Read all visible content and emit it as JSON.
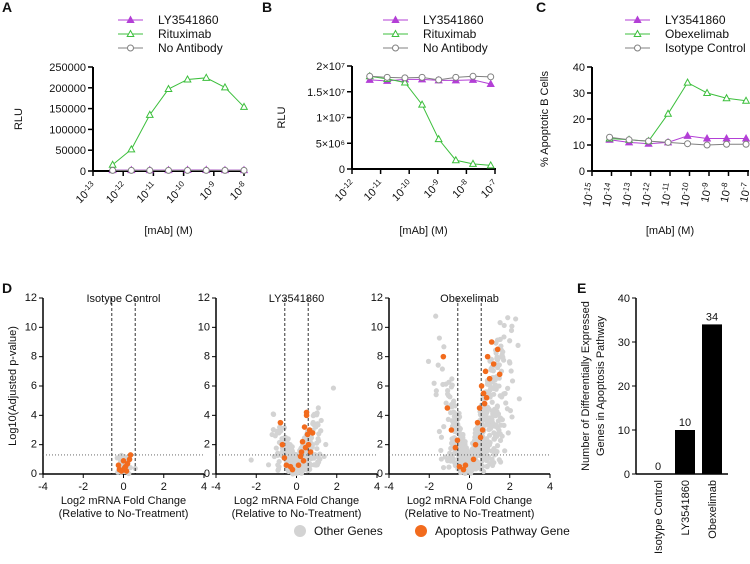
{
  "panels": {
    "A": "A",
    "B": "B",
    "C": "C",
    "D": "D",
    "E": "E"
  },
  "colors": {
    "ly": "#b33fd6",
    "green": "#3cbf3c",
    "grey": "#808080",
    "orange": "#f26b1d",
    "lightgrey": "#d3d3d3",
    "bar": "#000000"
  },
  "chart_data": [
    {
      "id": "A",
      "type": "line",
      "ylabel": "RLU",
      "xlabel": "[mAb]  (M)",
      "xscale": "log10",
      "xlim": [
        -13,
        -8
      ],
      "ylim": [
        0,
        250000
      ],
      "yticks": [
        0,
        50000,
        100000,
        150000,
        200000,
        250000
      ],
      "ytick_labels": [
        "0",
        "50000",
        "100000",
        "150000",
        "200000",
        "250000"
      ],
      "xticks": [
        -13,
        -12,
        -11,
        -10,
        -9,
        -8
      ],
      "legend": "top",
      "series": [
        {
          "name": "LY3541860",
          "color": "ly",
          "marker": "tri-filled",
          "x": [
            -12.35,
            -11.73,
            -11.12,
            -10.5,
            -9.87,
            -9.25,
            -8.63,
            -8.0
          ],
          "y": [
            2000,
            2000,
            2000,
            2000,
            2500,
            2500,
            2000,
            2000
          ]
        },
        {
          "name": "Rituximab",
          "color": "green",
          "marker": "tri-open",
          "x": [
            -12.35,
            -11.73,
            -11.12,
            -10.5,
            -9.87,
            -9.25,
            -8.63,
            -8.0
          ],
          "y": [
            15000,
            52000,
            135000,
            197000,
            220000,
            224000,
            201000,
            154000
          ]
        },
        {
          "name": "No Antibody",
          "color": "grey",
          "marker": "circle-open",
          "x": [
            -12.35,
            -11.73,
            -11.12,
            -10.5,
            -9.87,
            -9.25,
            -8.63,
            -8.0
          ],
          "y": [
            1500,
            1500,
            1500,
            1500,
            1500,
            1500,
            1500,
            1500
          ]
        }
      ]
    },
    {
      "id": "B",
      "type": "line",
      "ylabel": "RLU",
      "xlabel": "[mAb] (M)",
      "xscale": "log10",
      "xlim": [
        -12,
        -7
      ],
      "ylim": [
        0,
        20000000
      ],
      "yticks": [
        0,
        5000000,
        10000000,
        15000000,
        20000000
      ],
      "ytick_labels": [
        "0",
        "5×10⁶",
        "1×10⁷",
        "1.5×10⁷",
        "2×10⁷"
      ],
      "xticks": [
        -12,
        -11,
        -10,
        -9,
        -8,
        -7
      ],
      "legend": "top",
      "series": [
        {
          "name": "LY3541860",
          "color": "ly",
          "marker": "tri-filled",
          "x": [
            -11.38,
            -10.77,
            -10.15,
            -9.55,
            -8.97,
            -8.37,
            -7.77,
            -7.15
          ],
          "y": [
            17300000,
            17100000,
            17400000,
            17400000,
            17200000,
            17200000,
            17300000,
            16500000
          ]
        },
        {
          "name": "Rituximab",
          "color": "green",
          "marker": "tri-open",
          "x": [
            -11.38,
            -10.77,
            -10.15,
            -9.55,
            -8.97,
            -8.37,
            -7.77,
            -7.15
          ],
          "y": [
            18000000,
            17500000,
            16800000,
            12500000,
            5800000,
            1700000,
            1000000,
            700000
          ]
        },
        {
          "name": "No Antibody",
          "color": "grey",
          "marker": "circle-open",
          "x": [
            -11.38,
            -10.77,
            -10.15,
            -9.55,
            -8.97,
            -8.37,
            -7.77,
            -7.15
          ],
          "y": [
            18000000,
            17800000,
            17700000,
            17800000,
            17300000,
            17800000,
            18000000,
            17900000
          ]
        }
      ]
    },
    {
      "id": "C",
      "type": "line",
      "ylabel": "% Apoptotic B Cells",
      "xlabel": "[mAb] (M)",
      "xscale": "log10",
      "xlim": [
        -15,
        -7
      ],
      "ylim": [
        0,
        40
      ],
      "yticks": [
        0,
        10,
        20,
        30,
        40
      ],
      "ytick_labels": [
        "0",
        "10",
        "20",
        "30",
        "40"
      ],
      "xticks": [
        -15,
        -14,
        -13,
        -12,
        -11,
        -10,
        -9,
        -8,
        -7
      ],
      "legend": "top",
      "series": [
        {
          "name": "LY3541860",
          "color": "ly",
          "marker": "tri-filled",
          "x": [
            -14.1,
            -13.1,
            -12.1,
            -11.1,
            -10.1,
            -9.1,
            -8.1,
            -7.1
          ],
          "y": [
            12,
            11,
            10.5,
            11,
            13.5,
            12.5,
            12.5,
            12.5
          ]
        },
        {
          "name": "Obexelimab",
          "color": "green",
          "marker": "tri-open",
          "x": [
            -14.1,
            -13.1,
            -12.1,
            -11.1,
            -10.1,
            -9.1,
            -8.1,
            -7.1
          ],
          "y": [
            12.5,
            12,
            11.5,
            22,
            34,
            30,
            28,
            27
          ]
        },
        {
          "name": "Isotype Control",
          "color": "grey",
          "marker": "circle-open",
          "x": [
            -14.1,
            -13.1,
            -12.1,
            -11.1,
            -10.1,
            -9.1,
            -8.1,
            -7.1
          ],
          "y": [
            13,
            12,
            11.5,
            11,
            10.5,
            10,
            10.3,
            10.3
          ]
        }
      ]
    },
    {
      "id": "D",
      "type": "scatter",
      "ylabel": "Log10(Adjusted p-value)",
      "xlabel": "Log2 mRNA Fold Change",
      "xlabel2": "(Relative to No-Treatment)",
      "xlim": [
        -4,
        4
      ],
      "ylim": [
        0,
        12
      ],
      "xticks": [
        -4,
        -2,
        0,
        2,
        4
      ],
      "yticks": [
        0,
        2,
        4,
        6,
        8,
        10,
        12
      ],
      "fc_threshold": 0.58,
      "p_threshold": 1.3,
      "legend": [
        {
          "name": "Other Genes",
          "color": "lightgrey"
        },
        {
          "name": "Apoptosis Pathway Gene",
          "color": "orange"
        }
      ],
      "plots": [
        {
          "title": "Isotype  Control",
          "other_cloud": {
            "n": 60,
            "xmean": 0.0,
            "xsd": 0.15,
            "ymax": 1.2
          },
          "apoptosis": [
            [
              -0.2,
              0.3
            ],
            [
              0.1,
              0.5
            ],
            [
              0.3,
              1.0
            ],
            [
              -0.1,
              0.2
            ],
            [
              0.2,
              0.7
            ],
            [
              0.0,
              0.9
            ],
            [
              0.35,
              1.3
            ],
            [
              -0.25,
              0.6
            ],
            [
              0.15,
              0.2
            ],
            [
              0.05,
              0.4
            ]
          ]
        },
        {
          "title": "LY3541860",
          "other_cloud": {
            "n": 400,
            "xmean": 0.1,
            "xsd": 0.55,
            "ymax": 5.5
          },
          "apoptosis": [
            [
              -0.8,
              3.5
            ],
            [
              -0.7,
              2.0
            ],
            [
              -0.6,
              1.1
            ],
            [
              -0.5,
              0.6
            ],
            [
              -0.3,
              0.5
            ],
            [
              -0.2,
              0.3
            ],
            [
              0.1,
              0.6
            ],
            [
              0.2,
              1.2
            ],
            [
              0.3,
              2.2
            ],
            [
              0.4,
              3.2
            ],
            [
              0.5,
              4.0
            ],
            [
              0.55,
              2.7
            ],
            [
              0.6,
              2.0
            ],
            [
              0.7,
              1.5
            ],
            [
              0.8,
              2.8
            ],
            [
              0.45,
              1.8
            ],
            [
              0.35,
              0.9
            ],
            [
              0.65,
              3.0
            ],
            [
              0.25,
              1.5
            ],
            [
              0.5,
              4.2
            ]
          ]
        },
        {
          "title": "Obexelimab",
          "other_cloud": {
            "n": 600,
            "xmean": 0.3,
            "xsd": 0.8,
            "ymax": 10.5
          },
          "apoptosis": [
            [
              -1.3,
              8.0
            ],
            [
              -1.1,
              4.5
            ],
            [
              -0.9,
              3.0
            ],
            [
              -0.7,
              1.8
            ],
            [
              -0.5,
              0.5
            ],
            [
              -0.3,
              0.3
            ],
            [
              -0.2,
              0.6
            ],
            [
              0.2,
              1.0
            ],
            [
              0.3,
              2.0
            ],
            [
              0.4,
              3.5
            ],
            [
              0.5,
              4.5
            ],
            [
              0.6,
              6.0
            ],
            [
              0.7,
              5.5
            ],
            [
              0.8,
              7.0
            ],
            [
              0.9,
              8.0
            ],
            [
              1.0,
              6.5
            ],
            [
              1.2,
              7.5
            ],
            [
              1.4,
              8.5
            ],
            [
              1.5,
              6.8
            ],
            [
              0.65,
              3.0
            ],
            [
              0.75,
              4.8
            ],
            [
              0.85,
              5.2
            ],
            [
              1.1,
              9.0
            ],
            [
              0.55,
              2.5
            ],
            [
              -0.6,
              2.3
            ]
          ]
        }
      ]
    },
    {
      "id": "E",
      "type": "bar",
      "ylabel": "Number of Differentially Expressed",
      "ylabel2": "Genes in  Apoptosis Pathway",
      "categories": [
        "Isotype Control",
        "LY3541860",
        "Obexelimab"
      ],
      "values": [
        0,
        10,
        34
      ],
      "value_labels": [
        "0",
        "10",
        "34"
      ],
      "ylim": [
        0,
        40
      ],
      "yticks": [
        0,
        10,
        20,
        30,
        40
      ]
    }
  ]
}
